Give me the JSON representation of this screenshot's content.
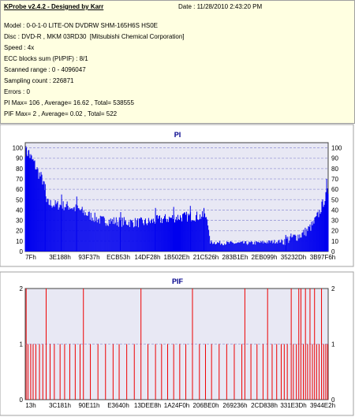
{
  "info": {
    "app_title": "KProbe v2.4.2 - Designed by Karr",
    "date": "Date : 11/28/2010 2:43:20 PM",
    "model": "Model : 0-0-1-0 LITE-ON DVDRW SHM-165H6S HS0E",
    "disc": "Disc : DVD-R , MKM 03RD30  [Mitsubishi Chemical Corporation]",
    "speed": "Speed : 4x",
    "ecc": "ECC blocks sum (PI/PIF) : 8/1",
    "range": "Scanned range : 0 - 4096047",
    "sampling": "Sampling count : 226871",
    "errors": "Errors : 0",
    "pi_summary": "PI Max= 106 , Average= 16.62 , Total= 538555",
    "pif_summary": "PIF Max= 2 , Average= 0.02 , Total= 522"
  },
  "colors": {
    "pi_bar": "#0000ee",
    "pif_bar": "#ee0000",
    "plot_bg": "#e8e8f4",
    "grid": "#9a9ad8",
    "title": "#00008b"
  },
  "chart_data": [
    {
      "type": "bar",
      "title": "PI",
      "ylim": [
        0,
        105
      ],
      "yticks": [
        0,
        10,
        20,
        30,
        40,
        50,
        60,
        70,
        80,
        90,
        100
      ],
      "xticks": [
        "7Fh",
        "3E188h",
        "93F37h",
        "ECB53h",
        "14DF28h",
        "1B502Eh",
        "21C526h",
        "283B1Eh",
        "2EB099h",
        "35232Dh",
        "3B97F6h"
      ],
      "x_range": [
        0,
        4096047
      ],
      "grid": true,
      "profile": [
        [
          0.0,
          97
        ],
        [
          0.01,
          95
        ],
        [
          0.02,
          90
        ],
        [
          0.03,
          85
        ],
        [
          0.045,
          75
        ],
        [
          0.06,
          68
        ],
        [
          0.07,
          47
        ],
        [
          0.1,
          45
        ],
        [
          0.14,
          44
        ],
        [
          0.18,
          40
        ],
        [
          0.21,
          35
        ],
        [
          0.25,
          30
        ],
        [
          0.3,
          29
        ],
        [
          0.35,
          28
        ],
        [
          0.4,
          28
        ],
        [
          0.45,
          31
        ],
        [
          0.5,
          33
        ],
        [
          0.55,
          34
        ],
        [
          0.6,
          34
        ],
        [
          0.61,
          9
        ],
        [
          0.65,
          8
        ],
        [
          0.7,
          8
        ],
        [
          0.75,
          8
        ],
        [
          0.8,
          9
        ],
        [
          0.85,
          10
        ],
        [
          0.88,
          13
        ],
        [
          0.91,
          16
        ],
        [
          0.93,
          20
        ],
        [
          0.95,
          26
        ],
        [
          0.97,
          37
        ],
        [
          0.985,
          48
        ],
        [
          1.0,
          58
        ]
      ],
      "bars": [
        {
          "x": 0.004,
          "y": 100
        },
        {
          "x": 0.012,
          "y": 98
        },
        {
          "x": 0.066,
          "y": 65
        },
        {
          "x": 0.12,
          "y": 55
        },
        {
          "x": 0.17,
          "y": 53
        },
        {
          "x": 0.315,
          "y": 38
        },
        {
          "x": 0.43,
          "y": 42
        },
        {
          "x": 0.49,
          "y": 43
        },
        {
          "x": 0.545,
          "y": 44
        },
        {
          "x": 0.59,
          "y": 42
        },
        {
          "x": 0.86,
          "y": 16
        },
        {
          "x": 0.995,
          "y": 70
        }
      ]
    },
    {
      "type": "bar",
      "title": "PIF",
      "ylim": [
        0,
        2
      ],
      "yticks": [
        0,
        1,
        2
      ],
      "xticks": [
        "13h",
        "3C181h",
        "90E11h",
        "E3640h",
        "13DEE8h",
        "1A24F0h",
        "206BE0h",
        "269236h",
        "2CD838h",
        "331E3Dh",
        "3944E2h"
      ],
      "x_range": [
        0,
        4096047
      ],
      "grid": true,
      "bars": [
        {
          "x": 0.003,
          "y": 2
        },
        {
          "x": 0.009,
          "y": 1
        },
        {
          "x": 0.018,
          "y": 1
        },
        {
          "x": 0.026,
          "y": 1
        },
        {
          "x": 0.035,
          "y": 1
        },
        {
          "x": 0.047,
          "y": 1
        },
        {
          "x": 0.058,
          "y": 1
        },
        {
          "x": 0.069,
          "y": 2
        },
        {
          "x": 0.082,
          "y": 1
        },
        {
          "x": 0.096,
          "y": 1
        },
        {
          "x": 0.115,
          "y": 1
        },
        {
          "x": 0.13,
          "y": 1
        },
        {
          "x": 0.147,
          "y": 1
        },
        {
          "x": 0.165,
          "y": 1
        },
        {
          "x": 0.181,
          "y": 1
        },
        {
          "x": 0.192,
          "y": 2
        },
        {
          "x": 0.215,
          "y": 1
        },
        {
          "x": 0.24,
          "y": 1
        },
        {
          "x": 0.265,
          "y": 1
        },
        {
          "x": 0.29,
          "y": 1
        },
        {
          "x": 0.31,
          "y": 1
        },
        {
          "x": 0.335,
          "y": 1
        },
        {
          "x": 0.36,
          "y": 1
        },
        {
          "x": 0.382,
          "y": 2
        },
        {
          "x": 0.405,
          "y": 1
        },
        {
          "x": 0.43,
          "y": 1
        },
        {
          "x": 0.45,
          "y": 1
        },
        {
          "x": 0.47,
          "y": 1
        },
        {
          "x": 0.49,
          "y": 1
        },
        {
          "x": 0.51,
          "y": 1
        },
        {
          "x": 0.53,
          "y": 1
        },
        {
          "x": 0.552,
          "y": 2
        },
        {
          "x": 0.575,
          "y": 1
        },
        {
          "x": 0.595,
          "y": 1
        },
        {
          "x": 0.615,
          "y": 1
        },
        {
          "x": 0.64,
          "y": 1
        },
        {
          "x": 0.665,
          "y": 1
        },
        {
          "x": 0.69,
          "y": 1
        },
        {
          "x": 0.715,
          "y": 1
        },
        {
          "x": 0.725,
          "y": 2
        },
        {
          "x": 0.745,
          "y": 1
        },
        {
          "x": 0.765,
          "y": 1
        },
        {
          "x": 0.785,
          "y": 1
        },
        {
          "x": 0.8,
          "y": 2
        },
        {
          "x": 0.815,
          "y": 1
        },
        {
          "x": 0.83,
          "y": 1
        },
        {
          "x": 0.845,
          "y": 1
        },
        {
          "x": 0.855,
          "y": 1
        },
        {
          "x": 0.865,
          "y": 1
        },
        {
          "x": 0.878,
          "y": 2
        },
        {
          "x": 0.885,
          "y": 1
        },
        {
          "x": 0.895,
          "y": 1
        },
        {
          "x": 0.903,
          "y": 2
        },
        {
          "x": 0.91,
          "y": 2
        },
        {
          "x": 0.918,
          "y": 1
        },
        {
          "x": 0.925,
          "y": 2
        },
        {
          "x": 0.932,
          "y": 1
        },
        {
          "x": 0.94,
          "y": 2
        },
        {
          "x": 0.948,
          "y": 1
        },
        {
          "x": 0.955,
          "y": 2
        },
        {
          "x": 0.962,
          "y": 1
        },
        {
          "x": 0.97,
          "y": 1
        },
        {
          "x": 0.978,
          "y": 2
        },
        {
          "x": 0.985,
          "y": 1
        },
        {
          "x": 0.992,
          "y": 1
        },
        {
          "x": 0.998,
          "y": 1
        }
      ]
    }
  ]
}
